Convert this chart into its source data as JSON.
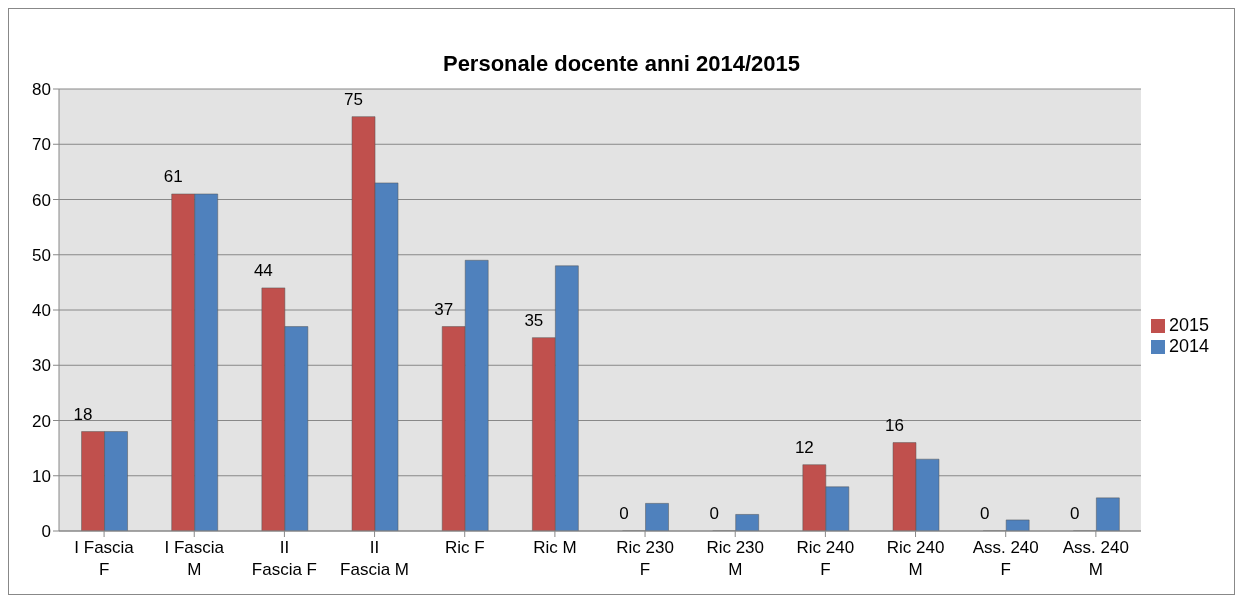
{
  "chart_data": {
    "type": "bar",
    "title": "Personale docente anni 2014/2015",
    "categories": [
      "I Fascia F",
      "I Fascia M",
      "II Fascia F",
      "II Fascia M",
      "Ric F",
      "Ric M",
      "Ric 230 F",
      "Ric 230 M",
      "Ric 240 F",
      "Ric 240 M",
      "Ass. 240 F",
      "Ass. 240 M"
    ],
    "series": [
      {
        "name": "2015",
        "color": "#c0504d",
        "values": [
          18,
          61,
          44,
          75,
          37,
          35,
          0,
          0,
          12,
          16,
          0,
          0
        ],
        "value_labels": [
          "18",
          "61",
          "44",
          "75",
          "37",
          "35",
          "0",
          "0",
          "12",
          "16",
          "0",
          "0"
        ]
      },
      {
        "name": "2014",
        "color": "#4f81bd",
        "values": [
          18,
          61,
          37,
          63,
          49,
          48,
          5,
          3,
          8,
          13,
          2,
          6
        ]
      }
    ],
    "ylim": [
      0,
      80
    ],
    "yticks": [
      0,
      10,
      20,
      30,
      40,
      50,
      60,
      70,
      80
    ],
    "grid": "y",
    "legend": "right"
  }
}
